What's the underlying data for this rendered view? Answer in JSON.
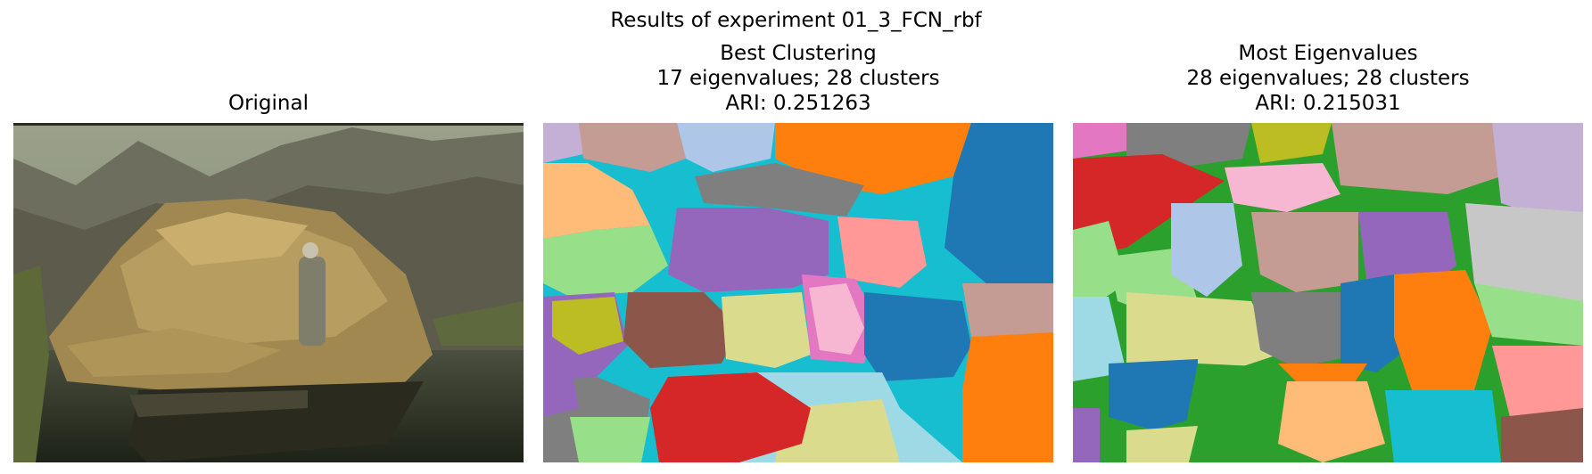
{
  "figure": {
    "suptitle": "Results of experiment 01_3_FCN_rbf"
  },
  "panels": [
    {
      "id": "original",
      "title_lines": [
        "Original"
      ]
    },
    {
      "id": "best",
      "title_lines": [
        "Best Clustering",
        "17 eigenvalues; 28 clusters",
        "ARI: 0.251263"
      ]
    },
    {
      "id": "most",
      "title_lines": [
        "Most Eigenvalues",
        "28 eigenvalues; 28 clusters",
        "ARI: 0.215031"
      ]
    }
  ],
  "palette": {
    "tab_blue": "#1f77b4",
    "tab_orange": "#ff7f0e",
    "tab_green": "#2ca02c",
    "tab_red": "#d62728",
    "tab_purple": "#9467bd",
    "tab_brown": "#8c564b",
    "tab_pink": "#e377c2",
    "tab_gray": "#7f7f7f",
    "tab_olive": "#bcbd22",
    "tab_cyan": "#17becf",
    "light_blue": "#aec7e8",
    "light_orange": "#ffbb78",
    "light_green": "#98df8a",
    "light_red": "#ff9896",
    "light_purple": "#c5b0d5",
    "light_brown": "#c49c94",
    "light_pink": "#f7b6d2",
    "light_gray": "#c7c7c7",
    "light_olive": "#dbdb8d",
    "light_cyan": "#9edae5"
  }
}
